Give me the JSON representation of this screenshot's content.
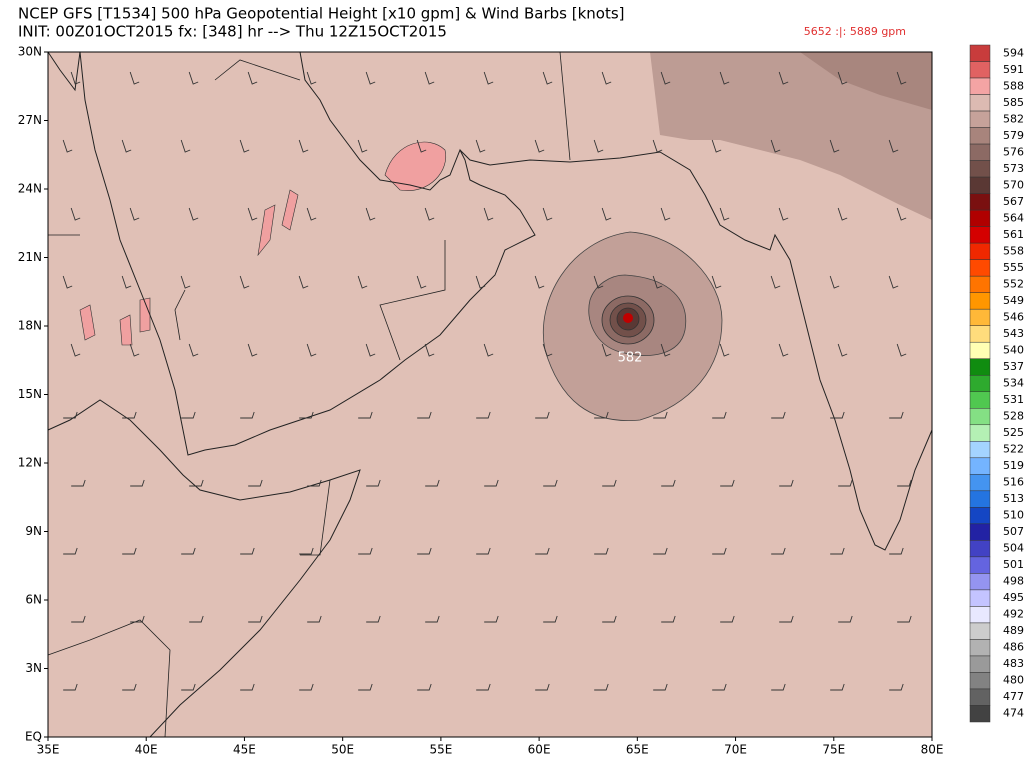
{
  "header": {
    "line1": "NCEP GFS [T1534] 500 hPa Geopotential Height [x10 gpm] & Wind Barbs [knots]",
    "line2": "INIT: 00Z01OCT2015 fx: [348] hr --> Thu 12Z15OCT2015",
    "range": "5652 :|: 5889 gpm"
  },
  "map": {
    "lat_labels": [
      "30N",
      "27N",
      "24N",
      "21N",
      "18N",
      "15N",
      "12N",
      "9N",
      "6N",
      "3N",
      "EQ"
    ],
    "lon_labels": [
      "35E",
      "40E",
      "45E",
      "50E",
      "55E",
      "60E",
      "65E",
      "70E",
      "75E",
      "80E"
    ],
    "contour_label": "582"
  },
  "colorbar": {
    "levels": [
      594,
      591,
      588,
      585,
      582,
      579,
      576,
      573,
      570,
      567,
      564,
      561,
      558,
      555,
      552,
      549,
      546,
      543,
      540,
      537,
      534,
      531,
      528,
      525,
      522,
      519,
      516,
      513,
      510,
      507,
      504,
      501,
      498,
      495,
      492,
      489,
      486,
      483,
      480,
      477,
      474
    ],
    "colors": [
      "#c83c3c",
      "#e06262",
      "#f4a4a4",
      "#dcbab2",
      "#c6a29a",
      "#a8847c",
      "#8c6a64",
      "#72504a",
      "#5a3834",
      "#7a1010",
      "#b00000",
      "#d40000",
      "#f02800",
      "#ff4a00",
      "#ff7400",
      "#ff9600",
      "#ffb838",
      "#ffdc7c",
      "#ffffb4",
      "#108c10",
      "#2eaa2e",
      "#50c850",
      "#84e084",
      "#b4f0b4",
      "#a4d4ff",
      "#74b4ff",
      "#4494f0",
      "#2474e0",
      "#1446c4",
      "#2222a4",
      "#4242c4",
      "#6464e0",
      "#9494f0",
      "#c4c4ff",
      "#e8e8ff",
      "#cccccc",
      "#b2b2b2",
      "#9a9a9a",
      "#828282",
      "#626262",
      "#424242"
    ]
  }
}
